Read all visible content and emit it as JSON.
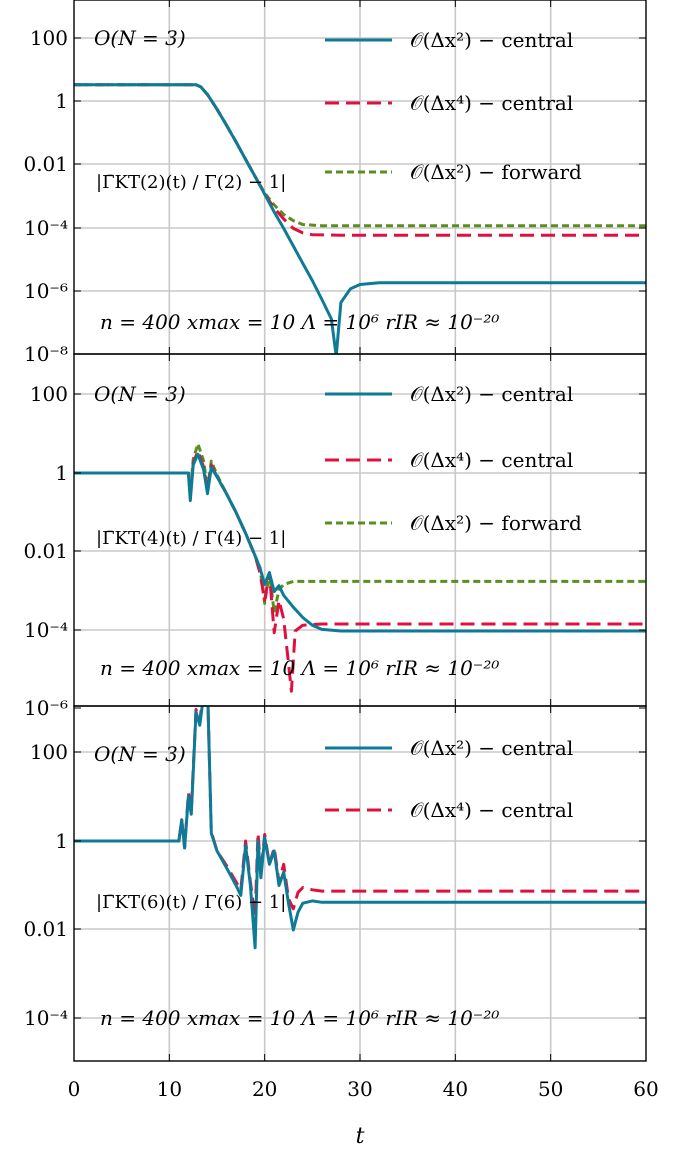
{
  "chart_data": [
    {
      "type": "line",
      "scale": "log",
      "ylim": [
        1e-08,
        3000
      ],
      "xlim": [
        0,
        60
      ],
      "ytick_labels": [
        "100",
        "1",
        "0.01",
        "10⁻⁴",
        "10⁻⁶",
        "10⁻⁸"
      ],
      "title_label": "O(N = 3)",
      "ylabel_text": "|Γ̄KT(2)(t) / Γ(2) − 1|",
      "params_text": "n = 400   xmax = 10   Λ = 10⁶   rIR ≈ 10⁻²⁰",
      "legend": [
        "𝒪(Δx²) − central",
        "𝒪(Δx⁴) − central",
        "𝒪(Δx²) − forward"
      ],
      "series": [
        {
          "name": "𝒪(Δx²) − central",
          "color": "#0d7b96",
          "dash": "solid",
          "points": [
            [
              0,
              3.3
            ],
            [
              12.8,
              3.3
            ],
            [
              13.3,
              2.8
            ],
            [
              14,
              1.6
            ],
            [
              15,
              0.55
            ],
            [
              16,
              0.17
            ],
            [
              17,
              0.05
            ],
            [
              18,
              0.014
            ],
            [
              19,
              0.004
            ],
            [
              20,
              0.0011
            ],
            [
              21,
              0.0003
            ],
            [
              22,
              9e-05
            ],
            [
              23,
              2.5e-05
            ],
            [
              24,
              7e-06
            ],
            [
              25,
              2e-06
            ],
            [
              26,
              5e-07
            ],
            [
              27,
              1.2e-07
            ],
            [
              27.5,
              8e-09
            ],
            [
              28,
              4e-07
            ],
            [
              29,
              1.1e-06
            ],
            [
              30,
              1.5e-06
            ],
            [
              32,
              1.7e-06
            ],
            [
              60,
              1.7e-06
            ]
          ]
        },
        {
          "name": "𝒪(Δx⁴) − central",
          "color": "#e0103e",
          "dash": "dashed",
          "points": [
            [
              0,
              3.3
            ],
            [
              12.8,
              3.3
            ],
            [
              13.3,
              2.8
            ],
            [
              14,
              1.6
            ],
            [
              15,
              0.55
            ],
            [
              16,
              0.17
            ],
            [
              17,
              0.05
            ],
            [
              18,
              0.014
            ],
            [
              19,
              0.004
            ],
            [
              20,
              0.0011
            ],
            [
              21,
              0.0004
            ],
            [
              22,
              0.00018
            ],
            [
              23,
              9e-05
            ],
            [
              24,
              6.5e-05
            ],
            [
              25,
              5.7e-05
            ],
            [
              28,
              5.5e-05
            ],
            [
              60,
              5.5e-05
            ]
          ]
        },
        {
          "name": "𝒪(Δx²) − forward",
          "color": "#5a8f1f",
          "dash": "dotted",
          "points": [
            [
              0,
              3.3
            ],
            [
              12.8,
              3.3
            ],
            [
              13.3,
              2.8
            ],
            [
              14,
              1.6
            ],
            [
              15,
              0.55
            ],
            [
              16,
              0.17
            ],
            [
              17,
              0.05
            ],
            [
              18,
              0.014
            ],
            [
              19,
              0.004
            ],
            [
              20,
              0.0012
            ],
            [
              21,
              0.0005
            ],
            [
              22,
              0.00025
            ],
            [
              23,
              0.00016
            ],
            [
              24,
              0.00012
            ],
            [
              26,
              0.00011
            ],
            [
              60,
              0.00011
            ]
          ]
        }
      ]
    },
    {
      "type": "line",
      "scale": "log",
      "ylim": [
        1e-06,
        3000
      ],
      "xlim": [
        0,
        60
      ],
      "ytick_labels": [
        "100",
        "1",
        "0.01",
        "10⁻⁴",
        "10⁻⁶"
      ],
      "title_label": "O(N = 3)",
      "ylabel_text": "|Γ̄KT(4)(t) / Γ(4) − 1|",
      "params_text": "n = 400   xmax = 10   Λ = 10⁶   rIR ≈ 10⁻²⁰",
      "legend": [
        "𝒪(Δx²) − central",
        "𝒪(Δx⁴) − central",
        "𝒪(Δx²) − forward"
      ],
      "series": [
        {
          "name": "𝒪(Δx²) − central",
          "color": "#0d7b96",
          "dash": "solid",
          "points": [
            [
              0,
              1
            ],
            [
              12,
              1
            ],
            [
              12.2,
              0.2
            ],
            [
              12.5,
              1.6
            ],
            [
              13,
              3
            ],
            [
              13.6,
              1.2
            ],
            [
              14,
              0.3
            ],
            [
              14.4,
              1.4
            ],
            [
              15,
              0.8
            ],
            [
              16,
              0.3
            ],
            [
              17,
              0.1
            ],
            [
              18,
              0.03
            ],
            [
              19,
              0.008
            ],
            [
              19.5,
              0.004
            ],
            [
              20,
              0.0015
            ],
            [
              20.5,
              0.003
            ],
            [
              21,
              0.001
            ],
            [
              21.5,
              0.0014
            ],
            [
              22,
              0.0008
            ],
            [
              23,
              0.0004
            ],
            [
              24,
              0.00022
            ],
            [
              25,
              0.00014
            ],
            [
              26,
              0.00011
            ],
            [
              28,
              0.0001
            ],
            [
              60,
              0.0001
            ]
          ]
        },
        {
          "name": "𝒪(Δx⁴) − central",
          "color": "#e0103e",
          "dash": "dashed",
          "points": [
            [
              0,
              1
            ],
            [
              12,
              1
            ],
            [
              12.2,
              0.25
            ],
            [
              12.5,
              1.8
            ],
            [
              13,
              3.6
            ],
            [
              13.6,
              1.4
            ],
            [
              14,
              0.35
            ],
            [
              14.4,
              1.6
            ],
            [
              15,
              0.8
            ],
            [
              16,
              0.3
            ],
            [
              17,
              0.1
            ],
            [
              18,
              0.03
            ],
            [
              19,
              0.008
            ],
            [
              19.5,
              0.003
            ],
            [
              20,
              0.0006
            ],
            [
              20.5,
              0.003
            ],
            [
              21,
              9e-05
            ],
            [
              21.5,
              0.0006
            ],
            [
              22,
              0.0002
            ],
            [
              22.5,
              1.5e-05
            ],
            [
              22.8,
              3e-06
            ],
            [
              23.2,
              0.0001
            ],
            [
              24,
              0.00014
            ],
            [
              26,
              0.00015
            ],
            [
              60,
              0.00015
            ]
          ]
        },
        {
          "name": "𝒪(Δx²) − forward",
          "color": "#5a8f1f",
          "dash": "dotted",
          "points": [
            [
              0,
              1
            ],
            [
              12,
              1
            ],
            [
              12.2,
              0.3
            ],
            [
              12.5,
              2.2
            ],
            [
              13,
              5.5
            ],
            [
              13.6,
              2
            ],
            [
              14,
              0.4
            ],
            [
              14.4,
              2
            ],
            [
              15,
              0.9
            ],
            [
              16,
              0.3
            ],
            [
              17,
              0.1
            ],
            [
              18,
              0.03
            ],
            [
              19,
              0.008
            ],
            [
              19.5,
              0.004
            ],
            [
              20,
              0.0005
            ],
            [
              20.5,
              0.003
            ],
            [
              21,
              0.0003
            ],
            [
              21.5,
              0.0011
            ],
            [
              22,
              0.0015
            ],
            [
              23,
              0.0018
            ],
            [
              25,
              0.0018
            ],
            [
              60,
              0.0018
            ]
          ]
        }
      ]
    },
    {
      "type": "line",
      "scale": "log",
      "ylim": [
        1e-06,
        3000
      ],
      "xlim": [
        0,
        60
      ],
      "ytick_labels": [
        "100",
        "1",
        "0.01",
        "10⁻⁴"
      ],
      "title_label": "O(N = 3)",
      "ylabel_text": "|Γ̄KT(6)(t) / Γ(6) − 1|",
      "params_text": "n = 400   xmax = 10   Λ = 10⁶   rIR ≈ 10⁻²⁰",
      "legend": [
        "𝒪(Δx²) − central",
        "𝒪(Δx⁴) − central"
      ],
      "series": [
        {
          "name": "𝒪(Δx²) − central",
          "color": "#0d7b96",
          "dash": "solid",
          "points": [
            [
              0,
              1
            ],
            [
              11,
              1
            ],
            [
              11.3,
              3
            ],
            [
              11.6,
              0.7
            ],
            [
              12,
              10
            ],
            [
              12.3,
              4
            ],
            [
              12.8,
              800
            ],
            [
              13.2,
              400
            ],
            [
              13.6,
              2000
            ],
            [
              14,
              3000
            ],
            [
              14.4,
              1.5
            ],
            [
              15,
              0.6
            ],
            [
              16,
              0.25
            ],
            [
              17,
              0.1
            ],
            [
              17.5,
              0.06
            ],
            [
              18,
              0.8
            ],
            [
              18.5,
              0.1
            ],
            [
              19,
              0.004
            ],
            [
              19.3,
              1
            ],
            [
              19.6,
              0.15
            ],
            [
              20,
              1.2
            ],
            [
              20.5,
              0.3
            ],
            [
              21,
              0.6
            ],
            [
              21.5,
              0.1
            ],
            [
              22,
              0.2
            ],
            [
              22.5,
              0.04
            ],
            [
              23,
              0.01
            ],
            [
              23.5,
              0.025
            ],
            [
              24,
              0.04
            ],
            [
              25,
              0.045
            ],
            [
              26,
              0.042
            ],
            [
              60,
              0.042
            ]
          ]
        },
        {
          "name": "𝒪(Δx⁴) − central",
          "color": "#e0103e",
          "dash": "dashed",
          "points": [
            [
              0,
              1
            ],
            [
              11,
              1
            ],
            [
              11.3,
              3
            ],
            [
              11.6,
              0.7
            ],
            [
              12,
              12
            ],
            [
              12.3,
              5
            ],
            [
              12.8,
              900
            ],
            [
              13.2,
              500
            ],
            [
              13.6,
              2500
            ],
            [
              14,
              3000
            ],
            [
              14.4,
              1.6
            ],
            [
              15,
              0.6
            ],
            [
              16,
              0.28
            ],
            [
              17,
              0.12
            ],
            [
              17.5,
              0.08
            ],
            [
              18,
              1
            ],
            [
              18.5,
              0.12
            ],
            [
              19,
              0.02
            ],
            [
              19.3,
              1.5
            ],
            [
              19.6,
              0.2
            ],
            [
              20,
              1.4
            ],
            [
              20.5,
              0.3
            ],
            [
              21,
              0.7
            ],
            [
              21.5,
              0.12
            ],
            [
              22,
              0.3
            ],
            [
              22.5,
              0.05
            ],
            [
              23,
              0.03
            ],
            [
              23.5,
              0.07
            ],
            [
              24,
              0.09
            ],
            [
              25,
              0.08
            ],
            [
              26,
              0.075
            ],
            [
              60,
              0.075
            ]
          ]
        }
      ]
    }
  ],
  "xlabel": "t",
  "xtick_labels": [
    "0",
    "10",
    "20",
    "30",
    "40",
    "50",
    "60"
  ]
}
